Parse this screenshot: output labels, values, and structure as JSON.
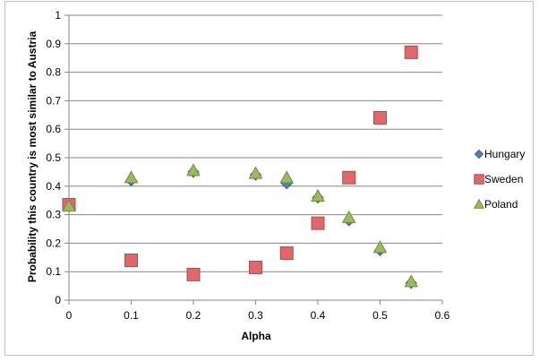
{
  "chart_data": {
    "type": "scatter",
    "title": "",
    "xlabel": "Alpha",
    "ylabel": "Probability this country is most similar to Austria",
    "xlim": [
      0,
      0.6
    ],
    "ylim": [
      0,
      1
    ],
    "x_ticks": [
      "0",
      "0.1",
      "0.2",
      "0.3",
      "0.4",
      "0.5",
      "0.6"
    ],
    "y_ticks": [
      "0",
      "0.1",
      "0.2",
      "0.3",
      "0.4",
      "0.5",
      "0.6",
      "0.7",
      "0.8",
      "0.9",
      "1"
    ],
    "grid": "horizontal",
    "legend_position": "right",
    "series": [
      {
        "name": "Hungary",
        "marker": "diamond",
        "color": "#4f81bd",
        "x": [
          0,
          0.1,
          0.2,
          0.3,
          0.35,
          0.4,
          0.45,
          0.5,
          0.55
        ],
        "y": [
          0.33,
          0.42,
          0.45,
          0.44,
          0.41,
          0.36,
          0.28,
          0.175,
          0.06
        ]
      },
      {
        "name": "Sweden",
        "marker": "square",
        "color": "#e0686a",
        "x": [
          0,
          0.1,
          0.2,
          0.3,
          0.35,
          0.4,
          0.45,
          0.5,
          0.55
        ],
        "y": [
          0.335,
          0.14,
          0.09,
          0.115,
          0.165,
          0.27,
          0.43,
          0.64,
          0.87
        ]
      },
      {
        "name": "Poland",
        "marker": "triangle",
        "color": "#9bbb59",
        "x": [
          0,
          0.1,
          0.2,
          0.3,
          0.35,
          0.4,
          0.45,
          0.5,
          0.55
        ],
        "y": [
          0.33,
          0.43,
          0.455,
          0.445,
          0.43,
          0.365,
          0.29,
          0.185,
          0.065
        ]
      }
    ]
  }
}
